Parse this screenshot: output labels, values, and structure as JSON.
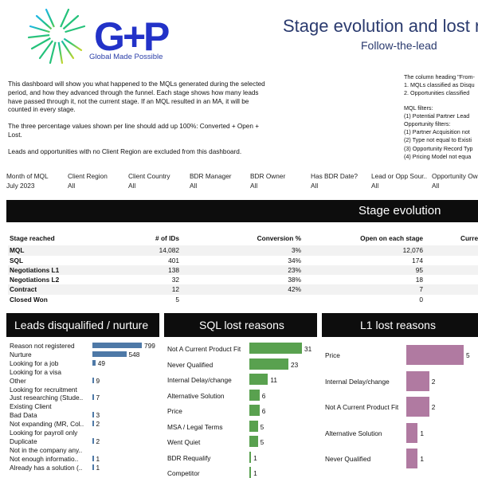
{
  "header": {
    "brand_tagline": "Global Made Possible",
    "title": "Stage evolution and lost re",
    "subtitle": "Follow-the-lead"
  },
  "intro": {
    "para1": "This dashboard will show you what happened to the MQLs generated during the selected period, and how they advanced through the funnel. Each stage shows how many leads have passed through it, not the current stage. If an MQL resulted in an MA, it will be counted in every stage.",
    "para2": "The three percentage values shown per line should add up 100%: Converted + Open + Lost.",
    "para3": "Leads and opportunities with no Client Region are excluded from this dashboard."
  },
  "notes": {
    "line1": "The column heading \"From-",
    "line2": "1. MQLs classified as Disqu",
    "line3": "2. Opportunities classified",
    "mql_filters": "MQL filters:",
    "mql1": "(1) Potential Partner Lead",
    "opp_filters": "Opportunity filters:",
    "opp1": "(1) Partner Acquisition not",
    "opp2": "(2) Type not equal to Existi",
    "opp3": "(3) Opportunity Record Typ",
    "opp4": "(4) Pricing Model not equa"
  },
  "filters": [
    {
      "label": "Month of MQL",
      "value": "July 2023"
    },
    {
      "label": "Client Region",
      "value": "All"
    },
    {
      "label": "Client Country",
      "value": "All"
    },
    {
      "label": "BDR Manager",
      "value": "All"
    },
    {
      "label": "BDR Owner",
      "value": "All"
    },
    {
      "label": "Has BDR Date?",
      "value": "All"
    },
    {
      "label": "Lead or Opp Sour..",
      "value": "All"
    },
    {
      "label": "Opportunity Ow",
      "value": "All"
    }
  ],
  "stage_evolution": {
    "title": "Stage evolution",
    "headers": [
      "Stage reached",
      "# of IDs",
      "Conversion %",
      "Open on each stage",
      "Curre"
    ],
    "rows": [
      [
        "MQL",
        "14,082",
        "3%",
        "12,076"
      ],
      [
        "SQL",
        "401",
        "34%",
        "174"
      ],
      [
        "Negotiations L1",
        "138",
        "23%",
        "95"
      ],
      [
        "Negotiations L2",
        "32",
        "38%",
        "18"
      ],
      [
        "Contract",
        "12",
        "42%",
        "7"
      ],
      [
        "Closed Won",
        "5",
        "",
        "0"
      ]
    ]
  },
  "colors": {
    "disq_bar": "#4e79a7",
    "sql_bar": "#59a14f",
    "l1_bar": "#b07aa1",
    "title_blue": "#2a3a6e"
  },
  "panels": {
    "disqualified": {
      "title": "Leads disqualified / nurture",
      "items": [
        {
          "label": "Reason not registered",
          "value": 799
        },
        {
          "label": "Nurture",
          "value": 548
        },
        {
          "label": "Looking for a job",
          "value": 49
        },
        {
          "label": "Looking for a visa",
          "value": null
        },
        {
          "label": "Other",
          "value": 9
        },
        {
          "label": "Looking for recruitment",
          "value": null
        },
        {
          "label": "Just researching (Stude..",
          "value": 7
        },
        {
          "label": "Existing Client",
          "value": null
        },
        {
          "label": "Bad Data",
          "value": 3
        },
        {
          "label": "Not expanding (MR, Col..",
          "value": 2
        },
        {
          "label": "Looking for payroll only",
          "value": null
        },
        {
          "label": "Duplicate",
          "value": 2
        },
        {
          "label": "Not in the company any..",
          "value": null
        },
        {
          "label": "Not enough informatio..",
          "value": 1
        },
        {
          "label": "Already has a solution (..",
          "value": 1
        }
      ]
    },
    "sql_lost": {
      "title": "SQL lost reasons",
      "items": [
        {
          "label": "Not A Current Product Fit",
          "value": 31
        },
        {
          "label": "Never Qualified",
          "value": 23
        },
        {
          "label": "Internal Delay/change",
          "value": 11
        },
        {
          "label": "Alternative Solution",
          "value": 6
        },
        {
          "label": "Price",
          "value": 6
        },
        {
          "label": "MSA / Legal Terms",
          "value": 5
        },
        {
          "label": "Went Quiet",
          "value": 5
        },
        {
          "label": "BDR Requalify",
          "value": 1
        },
        {
          "label": "Competitor",
          "value": 1
        }
      ]
    },
    "l1_lost": {
      "title": "L1 lost reasons",
      "items": [
        {
          "label": "Price",
          "value": 5
        },
        {
          "label": "Internal Delay/change",
          "value": 2
        },
        {
          "label": "Not A Current Product Fit",
          "value": 2
        },
        {
          "label": "Alternative Solution",
          "value": 1
        },
        {
          "label": "Never Qualified",
          "value": 1
        }
      ]
    }
  }
}
